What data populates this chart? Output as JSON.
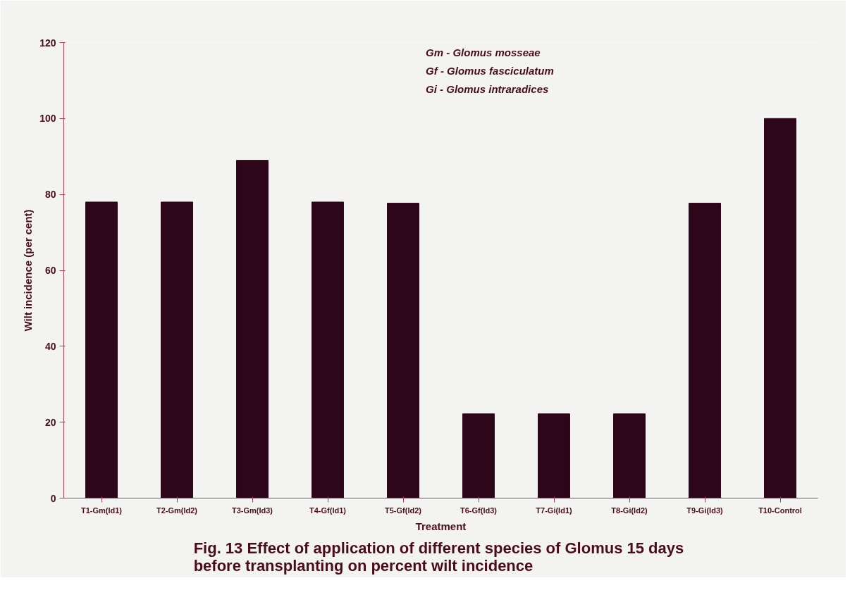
{
  "chart_data": {
    "type": "bar",
    "title": "Fig. 13 Effect of application of different species of Glomus  15 days\nbefore transplanting on percent wilt incidence",
    "xlabel": "Treatment",
    "ylabel": "Wilt incidence (per cent)",
    "categories": [
      "T1-Gm(Id1)",
      "T2-Gm(Id2)",
      "T3-Gm(Id3)",
      "T4-Gf(Id1)",
      "T5-Gf(Id2)",
      "T6-Gf(Id3)",
      "T7-Gi(Id1)",
      "T8-Gi(Id2)",
      "T9-Gi(Id3)",
      "T10-Control"
    ],
    "values": [
      78,
      78,
      89,
      78,
      77.7,
      22.2,
      22.2,
      22.2,
      77.7,
      100
    ],
    "color": "#2e0619",
    "ylim": [
      0,
      120
    ],
    "yticks": [
      0,
      20,
      40,
      60,
      80,
      100,
      120
    ],
    "grid": false,
    "annotations": [
      "Gm - Glomus mosseae",
      "Gf - Glomus fasciculatum",
      "Gi - Glomus intraradices"
    ]
  }
}
